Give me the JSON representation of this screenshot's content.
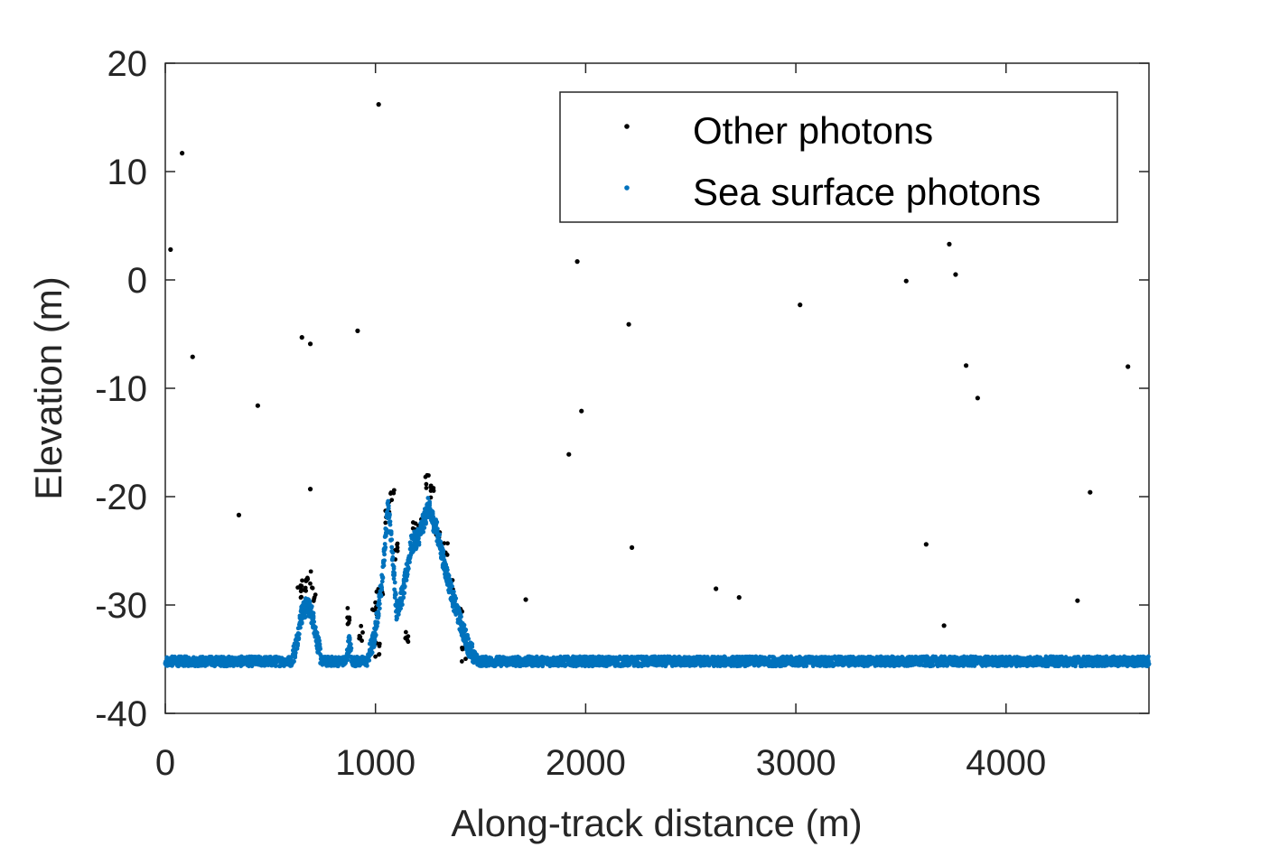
{
  "chart_data": {
    "type": "scatter",
    "title": "",
    "xlabel": "Along-track distance (m)",
    "ylabel": "Elevation (m)",
    "xlim": [
      0,
      4680
    ],
    "ylim": [
      -40,
      20
    ],
    "xticks": [
      0,
      1000,
      2000,
      3000,
      4000
    ],
    "yticks": [
      20,
      10,
      0,
      -10,
      -20,
      -30,
      -40
    ],
    "xtick_labels": [
      "0",
      "1000",
      "2000",
      "3000",
      "4000"
    ],
    "ytick_labels": [
      "20",
      "10",
      "0",
      "-10",
      "-20",
      "-30",
      "-40"
    ],
    "grid": false,
    "legend_position": "top-right",
    "series": [
      {
        "name": "Other photons",
        "color": "#000000",
        "points": [
          [
            25,
            2.8
          ],
          [
            80,
            11.7
          ],
          [
            130,
            -7.1
          ],
          [
            350,
            -21.7
          ],
          [
            440,
            -11.6
          ],
          [
            650,
            -5.3
          ],
          [
            690,
            -5.9
          ],
          [
            690,
            -19.3
          ],
          [
            915,
            -4.7
          ],
          [
            1015,
            16.2
          ],
          [
            1715,
            -29.5
          ],
          [
            1920,
            -16.1
          ],
          [
            1960,
            1.7
          ],
          [
            1980,
            -12.1
          ],
          [
            2205,
            -4.1
          ],
          [
            2220,
            -24.7
          ],
          [
            2620,
            -28.5
          ],
          [
            2730,
            -29.3
          ],
          [
            3020,
            -2.3
          ],
          [
            3525,
            -0.1
          ],
          [
            3620,
            -24.4
          ],
          [
            3705,
            -31.9
          ],
          [
            3730,
            3.3
          ],
          [
            3760,
            0.5
          ],
          [
            3810,
            -7.9
          ],
          [
            3865,
            -10.9
          ],
          [
            4340,
            -29.6
          ],
          [
            4400,
            -19.6
          ],
          [
            4580,
            -8.0
          ]
        ],
        "peak_points": [
          [
            640,
            -29.0
          ],
          [
            660,
            -28.2
          ],
          [
            680,
            -27.5
          ],
          [
            700,
            -29.0
          ],
          [
            870,
            -31.0
          ],
          [
            930,
            -32.5
          ],
          [
            1000,
            -30.5
          ],
          [
            1020,
            -29.0
          ],
          [
            1060,
            -22.0
          ],
          [
            1080,
            -20.2
          ],
          [
            1100,
            -25.0
          ],
          [
            1150,
            -32.8
          ],
          [
            1190,
            -23.0
          ],
          [
            1230,
            -21.5
          ],
          [
            1250,
            -18.8
          ],
          [
            1270,
            -19.5
          ],
          [
            1300,
            -23.5
          ],
          [
            1330,
            -25.0
          ],
          [
            1360,
            -28.5
          ],
          [
            1400,
            -31.0
          ],
          [
            1420,
            -34.6
          ],
          [
            1010,
            -34.1
          ]
        ]
      },
      {
        "name": "Sea surface photons",
        "color": "#0072BD",
        "baseline": -35.2,
        "profile": [
          [
            0,
            -35.2
          ],
          [
            600,
            -35.2
          ],
          [
            625,
            -33.5
          ],
          [
            645,
            -31.0
          ],
          [
            675,
            -30.0
          ],
          [
            700,
            -31.0
          ],
          [
            725,
            -33.5
          ],
          [
            745,
            -35.2
          ],
          [
            860,
            -35.2
          ],
          [
            875,
            -33.5
          ],
          [
            890,
            -35.2
          ],
          [
            960,
            -35.2
          ],
          [
            995,
            -33.0
          ],
          [
            1030,
            -28.0
          ],
          [
            1060,
            -20.8
          ],
          [
            1080,
            -25.0
          ],
          [
            1100,
            -30.5
          ],
          [
            1130,
            -29.0
          ],
          [
            1170,
            -24.5
          ],
          [
            1210,
            -23.5
          ],
          [
            1250,
            -21.0
          ],
          [
            1290,
            -23.0
          ],
          [
            1330,
            -26.5
          ],
          [
            1370,
            -29.5
          ],
          [
            1410,
            -32.0
          ],
          [
            1450,
            -34.2
          ],
          [
            1490,
            -35.2
          ],
          [
            4680,
            -35.2
          ]
        ]
      }
    ]
  }
}
